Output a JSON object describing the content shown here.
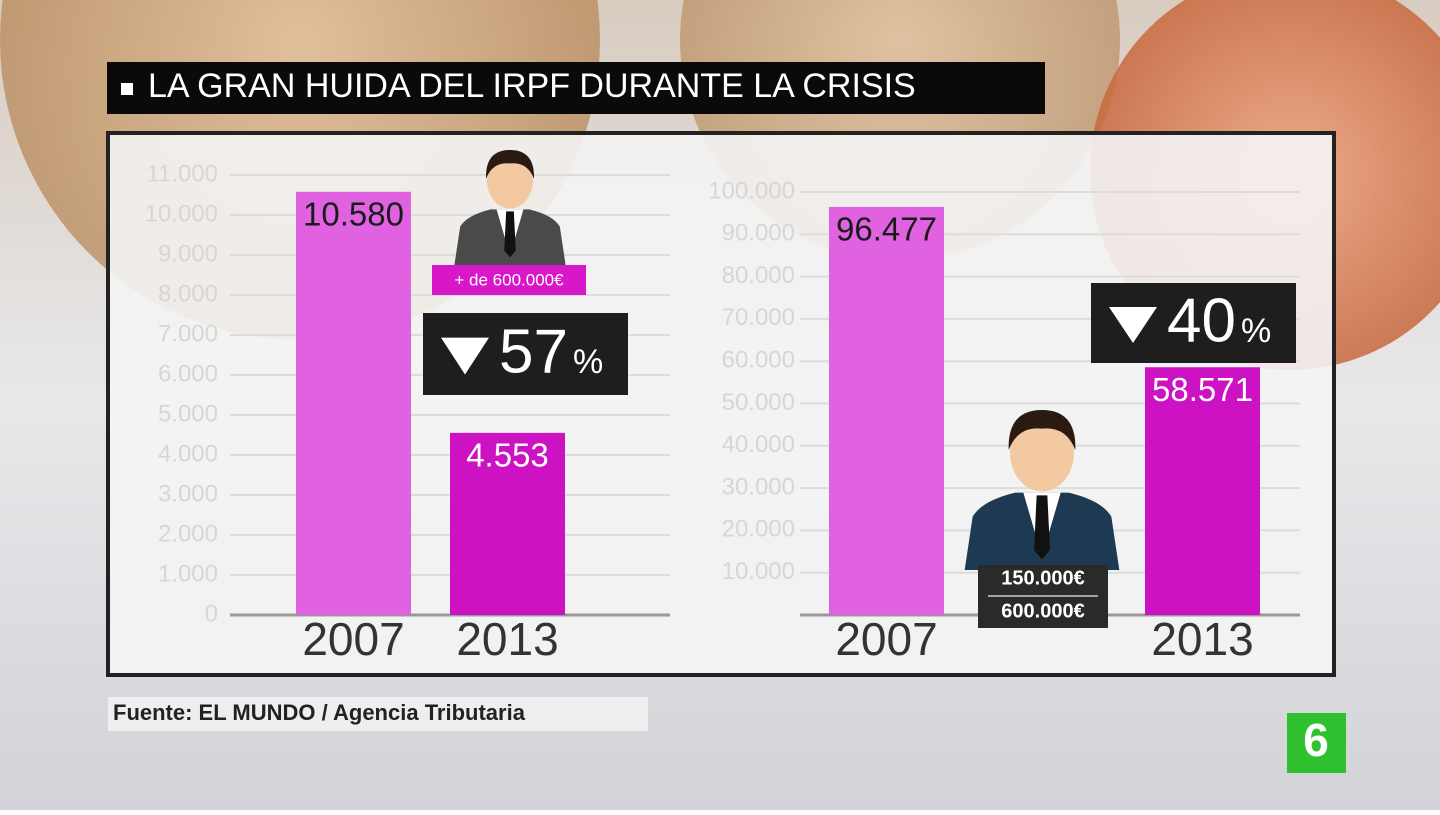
{
  "title": "LA GRAN HUIDA DEL IRPF DURANTE LA CRISIS",
  "source": "Fuente: EL MUNDO / Agencia Tributaria",
  "channel_logo": "6",
  "chart_data": [
    {
      "type": "bar",
      "categories": [
        "2007",
        "2013"
      ],
      "values": [
        10580,
        4553
      ],
      "value_labels": [
        "10.580",
        "4.553"
      ],
      "colors": [
        "#e062e0",
        "#cc12c2"
      ],
      "ylim": [
        0,
        11000
      ],
      "yticks": [
        0,
        {
          "value": 1000,
          "label": "1.000"
        },
        {
          "value": 2000,
          "label": "2.000"
        },
        {
          "value": 3000,
          "label": "3.000"
        },
        {
          "value": 4000,
          "label": "4.000"
        },
        {
          "value": 5000,
          "label": "5.000"
        },
        {
          "value": 6000,
          "label": "6.000"
        },
        {
          "value": 7000,
          "label": "7.000"
        },
        {
          "value": 8000,
          "label": "8.000"
        },
        {
          "value": 9000,
          "label": "9.000"
        },
        {
          "value": 10000,
          "label": "10.000"
        },
        {
          "value": 11000,
          "label": "11.000"
        }
      ],
      "grid": true,
      "change": "57",
      "change_unit": "%",
      "group_labels": [
        "+ de 600.000€"
      ]
    },
    {
      "type": "bar",
      "categories": [
        "2007",
        "2013"
      ],
      "values": [
        96477,
        58571
      ],
      "value_labels": [
        "96.477",
        "58.571"
      ],
      "colors": [
        "#e062e0",
        "#cc12c2"
      ],
      "ylim": [
        0,
        100000
      ],
      "yticks": [
        {
          "value": 10000,
          "label": "10.000"
        },
        {
          "value": 20000,
          "label": "20.000"
        },
        {
          "value": 30000,
          "label": "30.000"
        },
        {
          "value": 40000,
          "label": "40.000"
        },
        {
          "value": 50000,
          "label": "50.000"
        },
        {
          "value": 60000,
          "label": "60.000"
        },
        {
          "value": 70000,
          "label": "70.000"
        },
        {
          "value": 80000,
          "label": "80.000"
        },
        {
          "value": 90000,
          "label": "90.000"
        },
        {
          "value": 100000,
          "label": "100.000"
        }
      ],
      "grid": true,
      "change": "40",
      "change_unit": "%",
      "group_labels": [
        "150.000€",
        "600.000€"
      ]
    }
  ]
}
